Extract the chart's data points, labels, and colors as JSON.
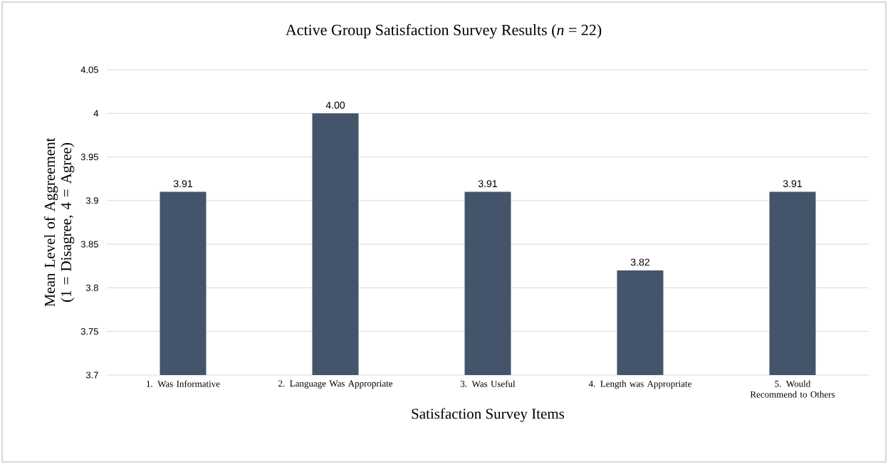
{
  "chart_data": {
    "type": "bar",
    "title": "Active Group Satisfaction Survey Results (*n* = 22)",
    "xlabel": "Satisfaction Survey Items",
    "ylabel": "Mean Level of Aggreement (1 = Disagree, 4 = Agree)",
    "categories": [
      "1. Was Informative",
      "2. Language Was Appropriate",
      "3. Was Useful",
      "4. Length was Appropriate",
      "5. Would Recommend to Others"
    ],
    "values": [
      3.91,
      4.0,
      3.91,
      3.82,
      3.91
    ],
    "value_labels": [
      "3.91",
      "4.00",
      "3.91",
      "3.82",
      "3.91"
    ],
    "color": "#44546a",
    "ylim": [
      3.7,
      4.05
    ],
    "yticks": [
      3.7,
      3.75,
      3.8,
      3.85,
      3.9,
      3.95,
      4,
      4.05
    ],
    "grid": "y"
  }
}
